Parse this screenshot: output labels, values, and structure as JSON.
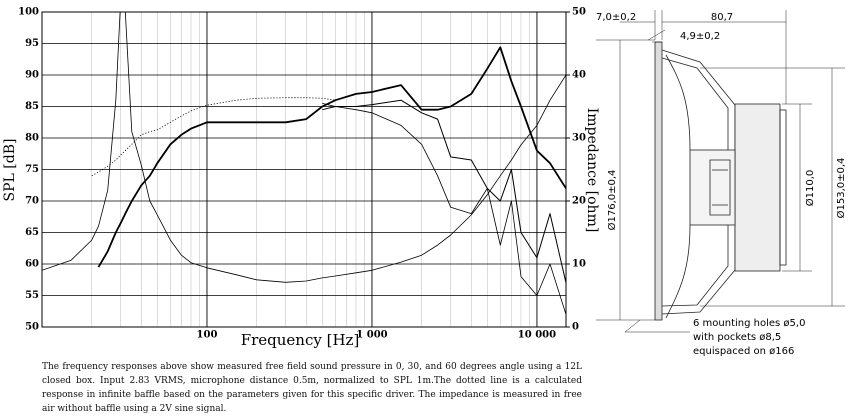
{
  "chart_data": {
    "type": "line",
    "xlabel": "Frequency [Hz]",
    "ylabel": "SPL [dB]",
    "y2label": "Impedance [ohm]",
    "xscale": "log",
    "xlim": [
      10,
      15000
    ],
    "xticks": [
      100,
      {
        "value": 1000,
        "label": "1 000"
      },
      {
        "value": 10000,
        "label": "10 000"
      }
    ],
    "ylim": [
      50,
      100
    ],
    "yticks": [
      50,
      55,
      60,
      65,
      70,
      75,
      80,
      85,
      90,
      95,
      100
    ],
    "y2lim": [
      0,
      50
    ],
    "y2ticks": [
      0,
      10,
      20,
      30,
      40,
      50
    ],
    "grid": true,
    "x": [
      10,
      15,
      20,
      22,
      25,
      28,
      30,
      32,
      35,
      40,
      45,
      50,
      60,
      70,
      80,
      100,
      150,
      200,
      300,
      400,
      500,
      600,
      800,
      1000,
      1500,
      2000,
      2500,
      3000,
      4000,
      5000,
      6000,
      7000,
      8000,
      10000,
      12000,
      15000
    ],
    "series": [
      {
        "color": "#000000",
        "width": 1.8,
        "values": [
          null,
          null,
          null,
          59.5,
          62,
          65,
          66.5,
          68,
          70,
          72.5,
          74,
          76,
          79,
          80.5,
          81.5,
          82.5,
          82.5,
          82.5,
          82.5,
          83,
          85,
          86,
          87,
          87.3,
          88.4,
          84.5,
          84.5,
          85,
          87,
          91,
          94.4,
          89,
          85,
          78,
          76,
          72
        ]
      },
      {
        "color": "#000000",
        "width": 1,
        "values": [
          null,
          null,
          null,
          null,
          null,
          null,
          null,
          null,
          null,
          null,
          null,
          null,
          null,
          null,
          null,
          null,
          null,
          null,
          null,
          null,
          84.5,
          85,
          85,
          85.3,
          86,
          84,
          83,
          77,
          76.5,
          72,
          70,
          75,
          65,
          61,
          68,
          57
        ]
      },
      {
        "color": "#000000",
        "width": 0.8,
        "values": [
          null,
          null,
          null,
          null,
          null,
          null,
          null,
          null,
          null,
          null,
          null,
          null,
          null,
          null,
          null,
          null,
          null,
          null,
          null,
          null,
          85.5,
          85,
          84.5,
          84,
          82,
          79,
          74,
          69,
          68,
          72,
          63,
          70,
          58,
          55,
          60,
          52
        ]
      },
      {
        "color": "#000000",
        "width": 0.8,
        "style": "dotted",
        "values": [
          null,
          null,
          74,
          74.6,
          75.5,
          76.5,
          77.3,
          78,
          79,
          80.5,
          81,
          81.3,
          82.5,
          83.5,
          84.3,
          85.2,
          86,
          86.3,
          86.4,
          86.4,
          86.3,
          86,
          null,
          null,
          null,
          null,
          null,
          null,
          null,
          null,
          null,
          null,
          null,
          null,
          null,
          null
        ]
      },
      {
        "color": "#000000",
        "width": 0.8,
        "axis": "y2",
        "values": [
          9,
          10.6,
          13.8,
          16,
          21.7,
          36,
          52,
          50,
          31,
          25.7,
          20,
          17.8,
          13.8,
          11.4,
          10.2,
          9.4,
          8.3,
          7.5,
          7.1,
          7.3,
          7.8,
          8.1,
          8.6,
          9,
          10.3,
          11.4,
          13,
          14.6,
          17.8,
          21,
          24,
          26.5,
          28.9,
          32,
          36,
          40
        ]
      }
    ]
  },
  "drawing": {
    "dims": [
      "7,0±0,2",
      "80,7",
      "4,9±0,2",
      "Ø176,0±0,4",
      "Ø110,0",
      "Ø153,0±0,4"
    ],
    "note": [
      "6 mounting holes ø5,0",
      "with pockets ø8,5",
      "equispaced on ø166"
    ]
  },
  "caption": "The frequency responses above show measured free field sound pressure in 0, 30, and 60 degrees angle using a 12L closed box. Input 2.83 VRMS, microphone distance 0.5m, normalized to SPL 1m.The dotted line is a calculated response in infinite baffle based on the parameters given for this specific driver. The impedance is measured in free air without baffle using a 2V sine signal."
}
